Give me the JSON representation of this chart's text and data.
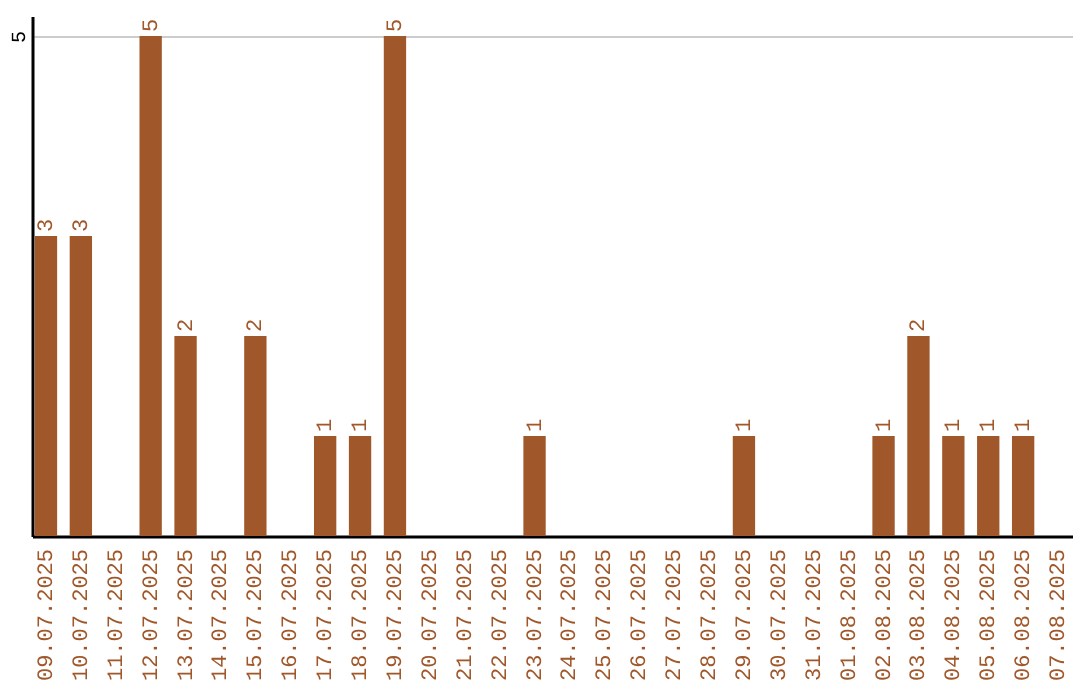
{
  "chart_data": {
    "type": "bar",
    "categories": [
      "09.07.2025",
      "10.07.2025",
      "11.07.2025",
      "12.07.2025",
      "13.07.2025",
      "14.07.2025",
      "15.07.2025",
      "16.07.2025",
      "17.07.2025",
      "18.07.2025",
      "19.07.2025",
      "20.07.2025",
      "21.07.2025",
      "22.07.2025",
      "23.07.2025",
      "24.07.2025",
      "25.07.2025",
      "26.07.2025",
      "27.07.2025",
      "28.07.2025",
      "29.07.2025",
      "30.07.2025",
      "31.07.2025",
      "01.08.2025",
      "02.08.2025",
      "03.08.2025",
      "04.08.2025",
      "05.08.2025",
      "06.08.2025",
      "07.08.2025"
    ],
    "values": [
      3,
      3,
      0,
      5,
      2,
      0,
      2,
      0,
      1,
      1,
      5,
      0,
      0,
      0,
      1,
      0,
      0,
      0,
      0,
      0,
      1,
      0,
      0,
      0,
      1,
      2,
      1,
      1,
      1,
      0
    ],
    "value_labels": [
      "3",
      "3",
      null,
      "5",
      "2",
      null,
      "2",
      null,
      "1",
      "1",
      "5",
      null,
      null,
      null,
      "1",
      null,
      null,
      null,
      null,
      null,
      "1",
      null,
      null,
      null,
      "1",
      "2",
      "1",
      "1",
      "1",
      null
    ],
    "color": "#a0572a",
    "ylim": [
      0,
      5.2
    ],
    "yticks": [
      5
    ],
    "grid": "y"
  }
}
